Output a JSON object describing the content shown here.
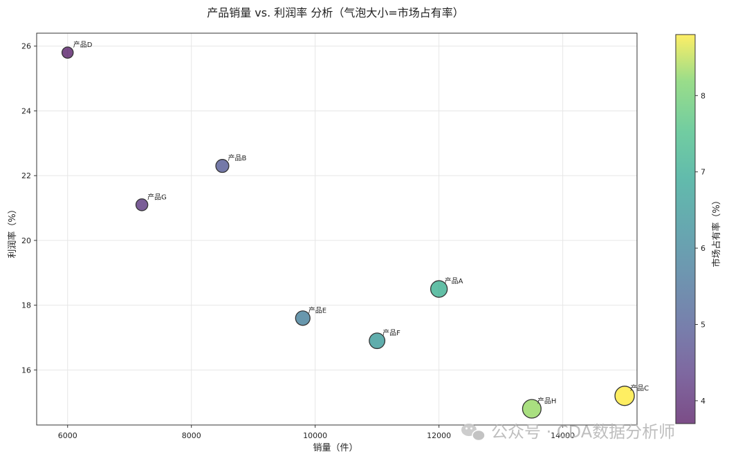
{
  "chart_data": {
    "type": "scatter",
    "title": "产品销量 vs. 利润率 分析（气泡大小=市场占有率）",
    "xlabel": "销量（件）",
    "ylabel": "利润率（%）",
    "xlim": [
      5500,
      15200
    ],
    "ylim": [
      14.3,
      26.4
    ],
    "xticks": [
      6000,
      8000,
      10000,
      12000,
      14000
    ],
    "yticks": [
      16,
      18,
      20,
      22,
      24,
      26
    ],
    "grid": true,
    "points": [
      {
        "label": "产品A",
        "x": 12000,
        "y": 18.5,
        "share": 7.1
      },
      {
        "label": "产品B",
        "x": 8500,
        "y": 22.3,
        "share": 4.9
      },
      {
        "label": "产品C",
        "x": 15000,
        "y": 15.2,
        "share": 8.8
      },
      {
        "label": "产品D",
        "x": 6000,
        "y": 25.8,
        "share": 3.8
      },
      {
        "label": "产品E",
        "x": 9800,
        "y": 17.6,
        "share": 5.8
      },
      {
        "label": "产品F",
        "x": 11000,
        "y": 16.9,
        "share": 6.5
      },
      {
        "label": "产品G",
        "x": 7200,
        "y": 21.1,
        "share": 4.2
      },
      {
        "label": "产品H",
        "x": 13500,
        "y": 14.8,
        "share": 8.3
      }
    ],
    "colorbar": {
      "label": "市场占有率（%）",
      "min": 3.7,
      "max": 8.8,
      "ticks": [
        4,
        5,
        6,
        7,
        8
      ],
      "colormap": "viridis"
    }
  },
  "watermark": {
    "text": "公众号 · CDA数据分析师",
    "icon": "wechat-icon"
  }
}
